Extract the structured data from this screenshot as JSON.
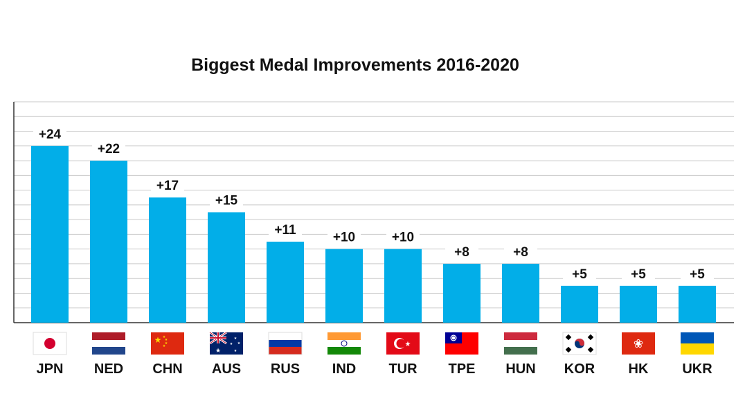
{
  "chart_data": {
    "type": "bar",
    "title": "Biggest Medal Improvements 2016-2020",
    "xlabel": "",
    "ylabel": "",
    "categories": [
      "JPN",
      "NED",
      "CHN",
      "AUS",
      "RUS",
      "IND",
      "TUR",
      "TPE",
      "HUN",
      "KOR",
      "HK",
      "UKR"
    ],
    "values": [
      24,
      22,
      17,
      15,
      11,
      10,
      10,
      8,
      8,
      5,
      5,
      5
    ],
    "data_labels": [
      "+24",
      "+22",
      "+17",
      "+15",
      "+11",
      "+10",
      "+10",
      "+8",
      "+8",
      "+5",
      "+5",
      "+5"
    ],
    "ylim": [
      0,
      30
    ],
    "grid": true,
    "bar_color": "#02aee8",
    "flags": [
      "japan-flag",
      "netherlands-flag",
      "china-flag",
      "australia-flag",
      "russia-flag",
      "india-flag",
      "turkey-flag",
      "taiwan-flag",
      "hungary-flag",
      "south-korea-flag",
      "hong-kong-flag",
      "ukraine-flag"
    ]
  }
}
